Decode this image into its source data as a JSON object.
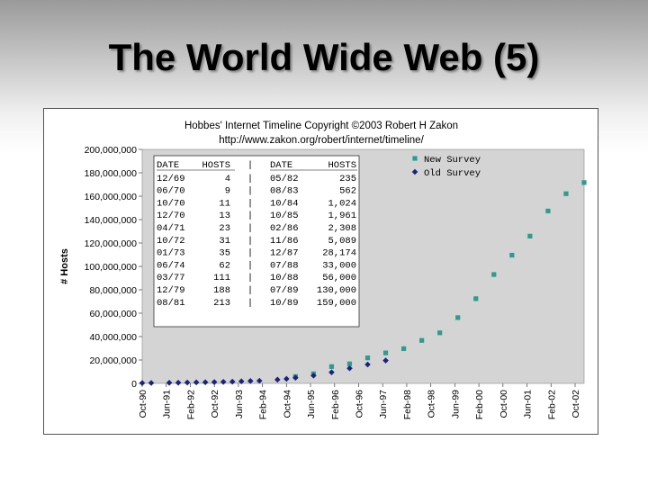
{
  "slide": {
    "title": "The World Wide Web (5)"
  },
  "chart_data": {
    "type": "scatter",
    "title": "Hobbes' Internet Timeline Copyright ©2003 Robert H Zakon",
    "subtitle": "http://www.zakon.org/robert/internet/timeline/",
    "xlabel": "",
    "ylabel": "# Hosts",
    "ylim": [
      0,
      200000000
    ],
    "y_tick_labels": [
      "0",
      "20,000,000",
      "40,000,000",
      "60,000,000",
      "80,000,000",
      "100,000,000",
      "120,000,000",
      "140,000,000",
      "160,000,000",
      "180,000,000",
      "200,000,000"
    ],
    "y_tick_values": [
      0,
      20000000,
      40000000,
      60000000,
      80000000,
      100000000,
      120000000,
      140000000,
      160000000,
      180000000,
      200000000
    ],
    "x_tick_labels": [
      "Oct-90",
      "Jun-91",
      "Feb-92",
      "Oct-92",
      "Jun-93",
      "Feb-94",
      "Oct-94",
      "Jun-95",
      "Feb-96",
      "Oct-96",
      "Jun-97",
      "Feb-98",
      "Oct-98",
      "Jun-99",
      "Feb-00",
      "Oct-00",
      "Jun-01",
      "Feb-02",
      "Oct-02"
    ],
    "x_tick_dates": [
      "1990-10",
      "1991-06",
      "1992-02",
      "1992-10",
      "1993-06",
      "1994-02",
      "1994-10",
      "1995-06",
      "1996-02",
      "1996-10",
      "1997-06",
      "1998-02",
      "1998-10",
      "1999-06",
      "2000-02",
      "2000-10",
      "2001-06",
      "2002-02",
      "2002-10"
    ],
    "xlim": [
      "1990-10",
      "2003-01"
    ],
    "grid": false,
    "plot_background": "#d4d4d4",
    "legend_position": "top-right",
    "series": [
      {
        "name": "New Survey",
        "marker": "square",
        "color": "#2a9d8f",
        "points": [
          [
            "1995-01",
            5846000
          ],
          [
            "1995-07",
            8200000
          ],
          [
            "1996-01",
            14352000
          ],
          [
            "1996-07",
            16729000
          ],
          [
            "1997-01",
            21819000
          ],
          [
            "1997-07",
            26053000
          ],
          [
            "1998-01",
            29670000
          ],
          [
            "1998-07",
            36739000
          ],
          [
            "1999-01",
            43230000
          ],
          [
            "1999-07",
            56218000
          ],
          [
            "2000-01",
            72398092
          ],
          [
            "2000-07",
            93047785
          ],
          [
            "2001-01",
            109574429
          ],
          [
            "2001-07",
            125888197
          ],
          [
            "2002-01",
            147344723
          ],
          [
            "2002-07",
            162128493
          ],
          [
            "2003-01",
            171638297
          ]
        ]
      },
      {
        "name": "Old Survey",
        "marker": "diamond",
        "color": "#1a237e",
        "points": [
          [
            "1990-10",
            313000
          ],
          [
            "1991-01",
            376000
          ],
          [
            "1991-07",
            535000
          ],
          [
            "1991-10",
            617000
          ],
          [
            "1992-01",
            727000
          ],
          [
            "1992-04",
            890000
          ],
          [
            "1992-07",
            992000
          ],
          [
            "1992-10",
            1136000
          ],
          [
            "1993-01",
            1313000
          ],
          [
            "1993-04",
            1486000
          ],
          [
            "1993-07",
            1776000
          ],
          [
            "1993-10",
            2056000
          ],
          [
            "1994-01",
            2217000
          ],
          [
            "1994-07",
            3212000
          ],
          [
            "1994-10",
            3864000
          ],
          [
            "1995-01",
            4852000
          ],
          [
            "1995-07",
            6642000
          ],
          [
            "1996-01",
            9472000
          ],
          [
            "1996-07",
            12881000
          ],
          [
            "1997-01",
            16146000
          ],
          [
            "1997-07",
            19540000
          ]
        ]
      }
    ],
    "inset_table": {
      "headers": [
        "DATE",
        "HOSTS",
        "|",
        "DATE",
        "HOSTS"
      ],
      "rows": [
        [
          "12/69",
          "4",
          "|",
          "05/82",
          "235"
        ],
        [
          "06/70",
          "9",
          "|",
          "08/83",
          "562"
        ],
        [
          "10/70",
          "11",
          "|",
          "10/84",
          "1,024"
        ],
        [
          "12/70",
          "13",
          "|",
          "10/85",
          "1,961"
        ],
        [
          "04/71",
          "23",
          "|",
          "02/86",
          "2,308"
        ],
        [
          "10/72",
          "31",
          "|",
          "11/86",
          "5,089"
        ],
        [
          "01/73",
          "35",
          "|",
          "12/87",
          "28,174"
        ],
        [
          "06/74",
          "62",
          "|",
          "07/88",
          "33,000"
        ],
        [
          "03/77",
          "111",
          "|",
          "10/88",
          "56,000"
        ],
        [
          "12/79",
          "188",
          "|",
          "07/89",
          "130,000"
        ],
        [
          "08/81",
          "213",
          "|",
          "10/89",
          "159,000"
        ]
      ]
    }
  }
}
